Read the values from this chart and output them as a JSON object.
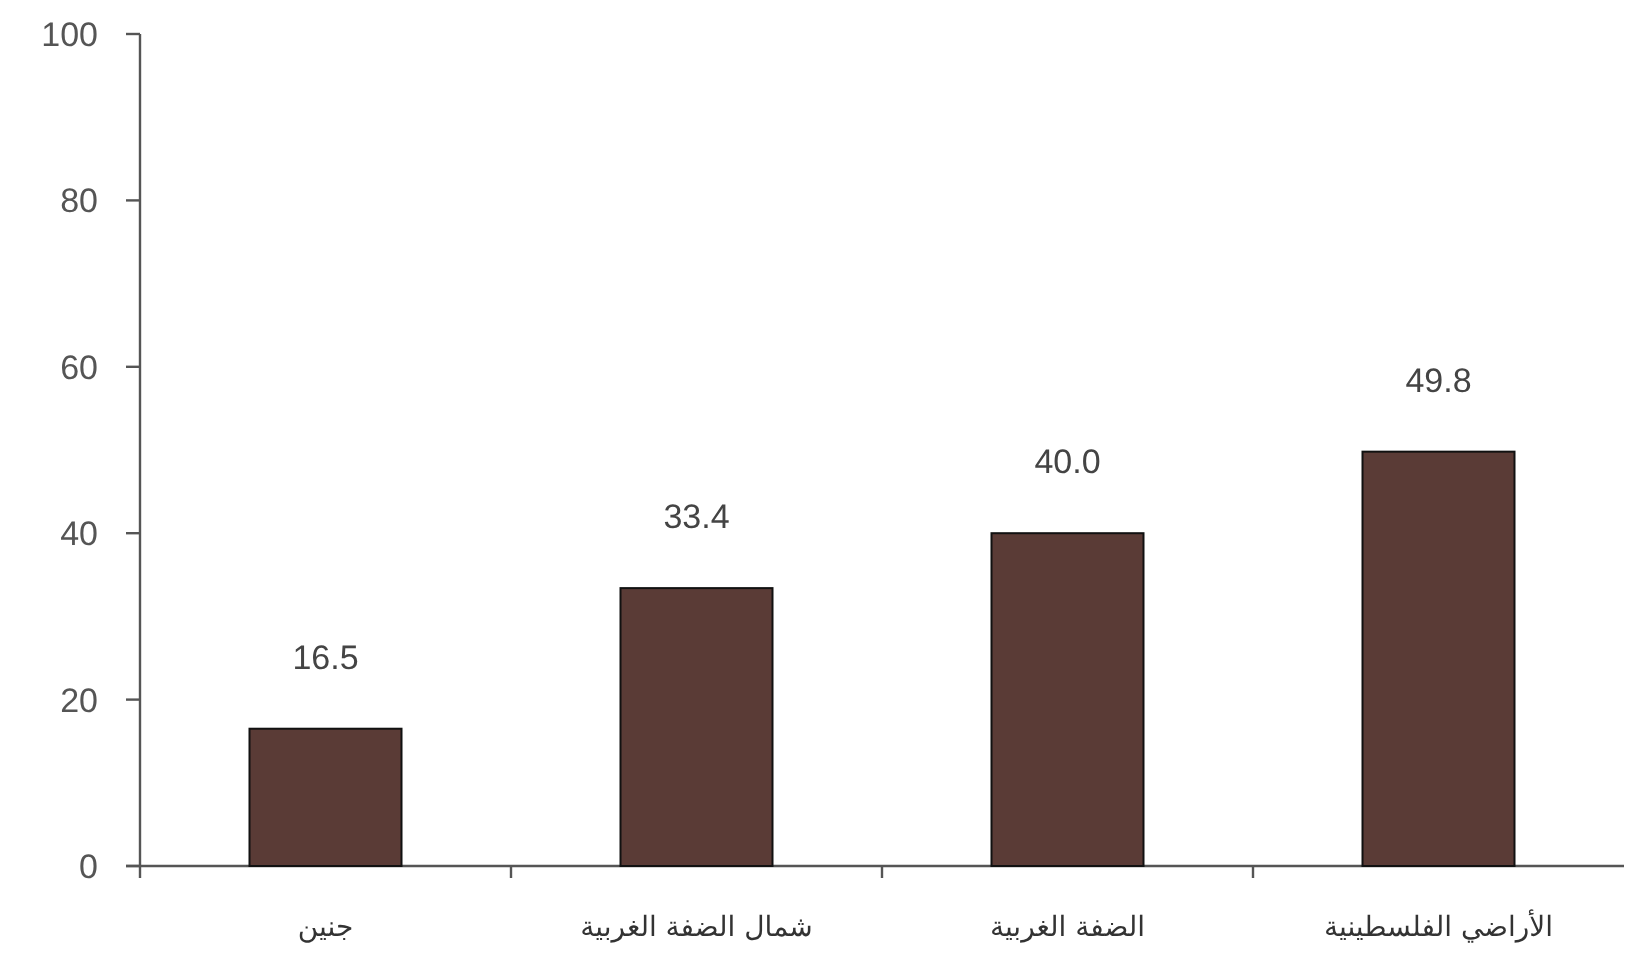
{
  "chart_data": {
    "type": "bar",
    "categories": [
      "جنين",
      "شمال الضفة الغربية",
      "الضفة الغربية",
      "الأراضي الفلسطينية"
    ],
    "values": [
      16.5,
      33.4,
      40.0,
      49.8
    ],
    "value_labels": [
      "16.5",
      "33.4",
      "40.0",
      "49.8"
    ],
    "color": "#5a3b36",
    "ylim": [
      0,
      100
    ],
    "yticks": [
      0,
      20,
      40,
      60,
      80,
      100
    ]
  }
}
